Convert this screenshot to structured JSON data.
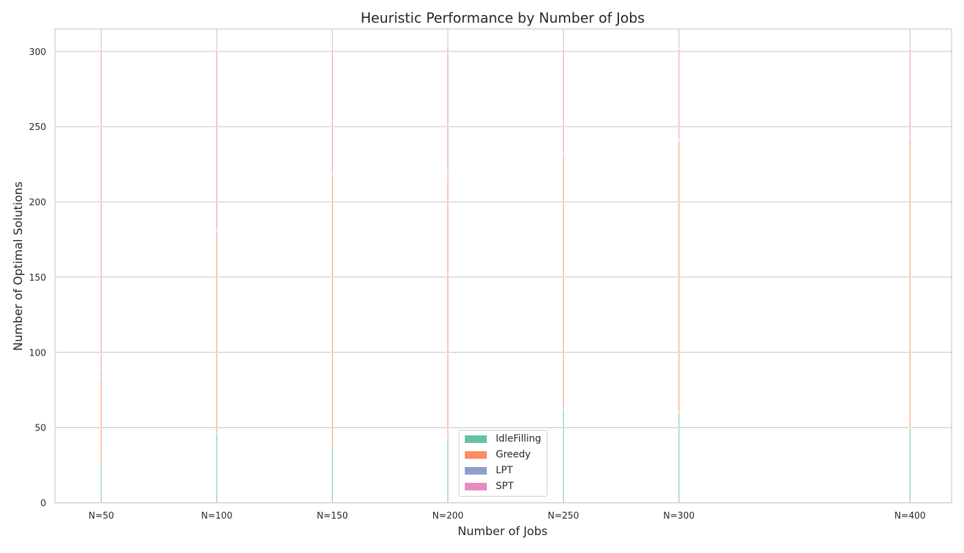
{
  "chart_data": {
    "type": "bar",
    "title": "Heuristic Performance by Number of Jobs",
    "xlabel": "Number of Jobs",
    "ylabel": "Number of Optimal Solutions",
    "categories": [
      "N=50",
      "N=100",
      "N=150",
      "N=200",
      "N=250",
      "N=300",
      "N=400"
    ],
    "x": [
      50,
      100,
      150,
      200,
      250,
      300,
      400
    ],
    "xlim": [
      30,
      418
    ],
    "ylim": [
      0,
      315
    ],
    "yticks": [
      0,
      50,
      100,
      150,
      200,
      250,
      300
    ],
    "grid": true,
    "legend_position": "lower center",
    "stacked": true,
    "series": [
      {
        "name": "IdleFilling",
        "color": "#66c2a5",
        "values": [
          27,
          46,
          38,
          42,
          62,
          60,
          50
        ]
      },
      {
        "name": "Greedy",
        "color": "#fc8d62",
        "values": [
          57,
          135,
          180,
          175,
          170,
          181,
          193
        ]
      },
      {
        "name": "LPT",
        "color": "#8da0cb",
        "values": [
          4,
          1,
          1,
          1,
          1,
          1,
          1
        ]
      },
      {
        "name": "SPT",
        "color": "#e78ac3",
        "values": [
          214,
          119,
          83,
          85,
          69,
          60,
          58
        ]
      }
    ]
  }
}
